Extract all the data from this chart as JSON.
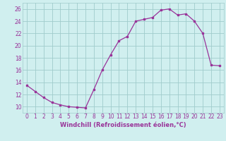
{
  "x": [
    0,
    1,
    2,
    3,
    4,
    5,
    6,
    7,
    8,
    9,
    10,
    11,
    12,
    13,
    14,
    15,
    16,
    17,
    18,
    19,
    20,
    21,
    22,
    23
  ],
  "y": [
    13.5,
    12.5,
    11.5,
    10.7,
    10.3,
    10.0,
    9.9,
    9.8,
    12.8,
    16.0,
    18.5,
    20.8,
    21.5,
    24.0,
    24.3,
    24.6,
    25.8,
    26.0,
    25.0,
    25.2,
    24.0,
    22.0,
    16.8,
    16.7
  ],
  "line_color": "#993399",
  "marker": "s",
  "marker_size": 2,
  "bg_color": "#d0efef",
  "grid_color": "#a0cccc",
  "xlabel": "Windchill (Refroidissement éolien,°C)",
  "xlabel_fontsize": 6.0,
  "tick_fontsize": 5.5,
  "ylim": [
    9,
    27
  ],
  "yticks": [
    10,
    12,
    14,
    16,
    18,
    20,
    22,
    24,
    26
  ],
  "xticks": [
    0,
    1,
    2,
    3,
    4,
    5,
    6,
    7,
    8,
    9,
    10,
    11,
    12,
    13,
    14,
    15,
    16,
    17,
    18,
    19,
    20,
    21,
    22,
    23
  ]
}
